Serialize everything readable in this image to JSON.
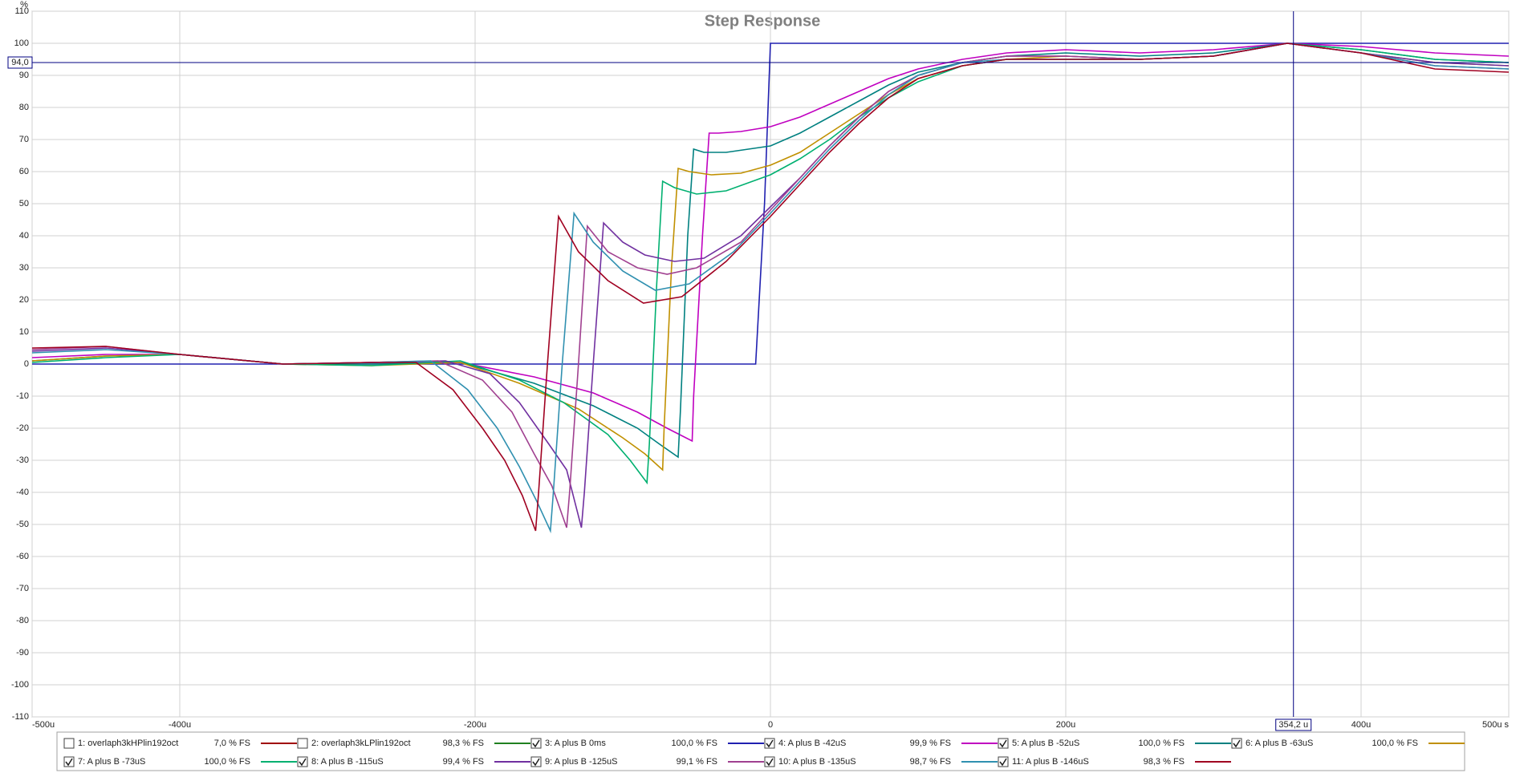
{
  "chart_data": {
    "type": "line",
    "title": "Step Response",
    "y_unit": "%",
    "xlim": [
      -500,
      500
    ],
    "ylim": [
      -110,
      110
    ],
    "xticks": [
      {
        "value": -500,
        "label": "-500u"
      },
      {
        "value": -400,
        "label": "-400u"
      },
      {
        "value": -200,
        "label": "-200u"
      },
      0,
      {
        "value": 200,
        "label": "200u"
      },
      {
        "value": 400,
        "label": "400u"
      },
      {
        "value": 500,
        "label": "500u s"
      }
    ],
    "yticks": [
      -110,
      -100,
      -90,
      -80,
      -70,
      -60,
      -50,
      -40,
      -30,
      -20,
      -10,
      0,
      10,
      20,
      30,
      40,
      50,
      60,
      70,
      80,
      90,
      100,
      110
    ],
    "grid": true,
    "cursor": {
      "x": {
        "value": 354.2,
        "label": "354,2 u"
      },
      "y": {
        "value": 94.0,
        "label": "94,0"
      }
    },
    "series": [
      {
        "name": "1: overlaph3kHPlin192oct",
        "color": "#a00000",
        "checked": false,
        "fs": 7.0,
        "fs_label": "7,0 % FS"
      },
      {
        "name": "2: overlaph3kLPlin192oct",
        "color": "#208020",
        "checked": false,
        "fs": 98.3,
        "fs_label": "98,3 % FS"
      },
      {
        "name": "3: A plus B 0ms",
        "color": "#2020b0",
        "checked": true,
        "fs": 100.0,
        "fs_label": "100,0 % FS",
        "x": [
          -500,
          -10,
          -4,
          0,
          500
        ],
        "values": [
          0,
          0,
          50,
          100,
          100
        ]
      },
      {
        "name": "4: A plus B -42uS",
        "color": "#c000c0",
        "checked": true,
        "fs": 99.9,
        "fs_label": "99,9 % FS",
        "x": [
          -500,
          -450,
          -400,
          -330,
          -270,
          -210,
          -160,
          -120,
          -90,
          -70,
          -53,
          -52,
          -46,
          -41.5,
          -35,
          -20,
          0,
          20,
          40,
          60,
          80,
          100,
          130,
          160,
          200,
          250,
          300,
          350,
          400,
          450,
          500
        ],
        "values": [
          2,
          3,
          3,
          0,
          0.5,
          0.5,
          -4,
          -9,
          -15,
          -20,
          -24,
          -10,
          40,
          72,
          72,
          72.5,
          74,
          77,
          81,
          85,
          89,
          92,
          95,
          97,
          98,
          97,
          98,
          100,
          99,
          97,
          96
        ]
      },
      {
        "name": "5: A plus B -52uS",
        "color": "#008080",
        "checked": true,
        "fs": 100.0,
        "fs_label": "100,0 % FS",
        "x": [
          -500,
          -450,
          -400,
          -330,
          -270,
          -210,
          -160,
          -120,
          -90,
          -75,
          -62.5,
          -61,
          -56,
          -52,
          -45,
          -30,
          0,
          20,
          40,
          60,
          80,
          100,
          130,
          160,
          200,
          250,
          300,
          350,
          400,
          450,
          500
        ],
        "values": [
          1,
          2.5,
          3,
          0,
          0,
          0.5,
          -6,
          -13,
          -20,
          -25,
          -29,
          -15,
          40,
          67,
          66,
          66,
          68,
          72,
          77,
          82,
          87,
          91,
          94,
          96,
          97,
          96,
          97,
          100,
          98,
          95,
          94
        ]
      },
      {
        "name": "6: A plus B -63uS",
        "color": "#c09000",
        "checked": true,
        "fs": 100.0,
        "fs_label": "100,0 % FS",
        "x": [
          -500,
          -450,
          -400,
          -330,
          -270,
          -210,
          -170,
          -130,
          -100,
          -85,
          -73,
          -72,
          -67,
          -62.5,
          -55,
          -40,
          -20,
          0,
          20,
          40,
          60,
          80,
          100,
          130,
          160,
          200,
          250,
          300,
          350,
          400,
          450,
          500
        ],
        "values": [
          1,
          2.5,
          3,
          0,
          -0.5,
          0.5,
          -6,
          -14,
          -23,
          -28,
          -33,
          -20,
          30,
          61,
          60,
          59,
          59.5,
          62,
          66,
          72,
          78,
          84,
          89,
          93,
          95,
          96,
          95,
          96,
          100,
          97,
          94,
          93
        ]
      },
      {
        "name": "7: A plus B -73uS",
        "color": "#00b070",
        "checked": true,
        "fs": 100.0,
        "fs_label": "100,0 % FS",
        "x": [
          -500,
          -450,
          -400,
          -330,
          -270,
          -210,
          -170,
          -140,
          -110,
          -95,
          -83.6,
          -82,
          -77,
          -73,
          -65,
          -50,
          -30,
          0,
          20,
          40,
          60,
          80,
          100,
          130,
          160,
          200,
          250,
          300,
          350,
          400,
          450,
          500
        ],
        "values": [
          0.5,
          2,
          3,
          0,
          -0.5,
          1,
          -5,
          -12,
          -22,
          -30,
          -37,
          -25,
          25,
          57,
          55,
          53,
          54,
          59,
          64,
          70,
          77,
          83,
          88,
          93,
          95,
          95,
          95,
          96,
          100,
          98,
          95,
          94
        ]
      },
      {
        "name": "8: A plus B -115uS",
        "color": "#7030a0",
        "checked": true,
        "fs": 99.4,
        "fs_label": "99,4 % FS",
        "x": [
          -500,
          -450,
          -400,
          -330,
          -270,
          -220,
          -190,
          -170,
          -150,
          -138,
          -128,
          -126,
          -120,
          -113,
          -100,
          -85,
          -65,
          -45,
          -20,
          0,
          20,
          40,
          60,
          80,
          100,
          130,
          160,
          200,
          250,
          300,
          350,
          400,
          450,
          500
        ],
        "values": [
          4,
          5,
          3,
          0,
          0.5,
          1,
          -3,
          -12,
          -25,
          -33,
          -51,
          -40,
          0,
          44,
          38,
          34,
          32,
          33,
          40,
          49,
          58,
          68,
          77,
          85,
          90,
          94,
          96,
          96,
          95,
          96,
          100,
          97,
          94,
          93
        ]
      },
      {
        "name": "9: A plus B -125uS",
        "color": "#a04090",
        "checked": true,
        "fs": 99.1,
        "fs_label": "99,1 % FS",
        "x": [
          -500,
          -450,
          -400,
          -330,
          -270,
          -225,
          -195,
          -175,
          -160,
          -148,
          -138,
          -136,
          -130,
          -124,
          -110,
          -90,
          -70,
          -50,
          -20,
          0,
          20,
          40,
          60,
          80,
          100,
          130,
          160,
          200,
          250,
          300,
          350,
          400,
          450,
          500
        ],
        "values": [
          4.5,
          5.5,
          3,
          0,
          0.5,
          1,
          -5,
          -15,
          -28,
          -38,
          -51,
          -40,
          0,
          43,
          35,
          30,
          28,
          30,
          38,
          48,
          58,
          68,
          77,
          85,
          90,
          94,
          96,
          96,
          95,
          96,
          100,
          97,
          93,
          92
        ]
      },
      {
        "name": "10: A plus B -135uS",
        "color": "#3090b0",
        "checked": true,
        "fs": 98.7,
        "fs_label": "98,7 % FS",
        "x": [
          -500,
          -450,
          -400,
          -330,
          -270,
          -230,
          -205,
          -185,
          -170,
          -158,
          -149,
          -147,
          -141,
          -133,
          -120,
          -100,
          -78,
          -55,
          -25,
          0,
          20,
          40,
          60,
          80,
          100,
          130,
          160,
          200,
          250,
          300,
          350,
          400,
          450,
          500
        ],
        "values": [
          3.5,
          4.5,
          3,
          0,
          0.5,
          1,
          -8,
          -20,
          -32,
          -43,
          -52,
          -40,
          0,
          47,
          38,
          29,
          23,
          25,
          35,
          47,
          57,
          67,
          76,
          84,
          90,
          94,
          95,
          95,
          95,
          96,
          100,
          97,
          93,
          92
        ]
      },
      {
        "name": "11: A plus B -146uS",
        "color": "#a00020",
        "checked": true,
        "fs": 98.3,
        "fs_label": "98,3 % FS",
        "x": [
          -500,
          -450,
          -400,
          -330,
          -270,
          -240,
          -215,
          -195,
          -180,
          -168,
          -159,
          -157,
          -151,
          -143.5,
          -130,
          -110,
          -86,
          -60,
          -30,
          0,
          20,
          40,
          60,
          80,
          100,
          130,
          160,
          200,
          250,
          300,
          350,
          400,
          450,
          500
        ],
        "values": [
          5,
          5.5,
          3,
          0,
          0.5,
          0.5,
          -8,
          -20,
          -30,
          -41,
          -52,
          -40,
          0,
          46,
          35,
          26,
          19,
          21,
          32,
          46,
          56,
          66,
          75,
          83,
          89,
          93,
          95,
          95,
          95,
          96,
          100,
          97,
          92,
          91
        ]
      }
    ]
  }
}
